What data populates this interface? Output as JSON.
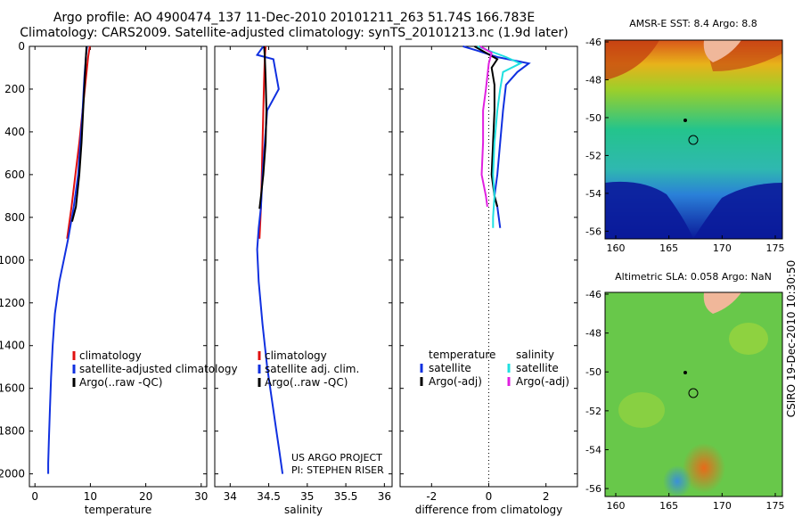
{
  "figure": {
    "title_line1": "Argo profile: AO 4900474_137 11-Dec-2010 20101211_263 51.74S 166.783E",
    "title_line2": "Climatology: CARS2009. Satellite-adjusted climatology: synTS_20101213.nc (1.9d later)",
    "side_label": "CSIRO 19-Dec-2010 10:30:50",
    "project_line1": "US ARGO PROJECT",
    "project_line2": "PI: STEPHEN RISER"
  },
  "colors": {
    "climatology": "#e01010",
    "satellite": "#1030e0",
    "argo": "#000000",
    "satellite_salinity": "#20e0e0",
    "argo_salinity": "#e020e0"
  },
  "chart_data": [
    {
      "type": "line",
      "xlabel": "temperature",
      "xlim": [
        -1,
        31
      ],
      "xticks": [
        0,
        10,
        20,
        30
      ],
      "ylim": [
        2060,
        0
      ],
      "yticks": [
        0,
        200,
        400,
        600,
        800,
        1000,
        1200,
        1400,
        1600,
        1800,
        2000
      ],
      "legend": [
        "climatology",
        "satellite-adjusted climatology",
        "Argo(..raw -QC)"
      ],
      "series": [
        {
          "name": "climatology",
          "color_key": "climatology",
          "x": [
            9.9,
            9.6,
            9.2,
            8.6,
            8.0,
            7.3,
            6.6,
            5.8
          ],
          "y": [
            0,
            50,
            150,
            300,
            450,
            600,
            750,
            900
          ]
        },
        {
          "name": "satellite-adjusted climatology",
          "color_key": "satellite",
          "x": [
            9.4,
            9.2,
            8.9,
            8.6,
            8.2,
            7.8,
            7.0,
            6.0,
            5.2,
            4.4,
            3.6,
            3.2,
            2.9,
            2.7,
            2.5,
            2.4,
            2.4
          ],
          "y": [
            0,
            50,
            150,
            300,
            450,
            600,
            750,
            900,
            1000,
            1100,
            1250,
            1400,
            1550,
            1700,
            1850,
            1950,
            2000
          ]
        },
        {
          "name": "Argo(..raw -QC)",
          "color_key": "argo",
          "x": [
            9.3,
            9.2,
            9.0,
            8.7,
            8.4,
            8.0,
            7.4,
            6.7
          ],
          "y": [
            0,
            50,
            150,
            300,
            450,
            600,
            750,
            820
          ]
        }
      ]
    },
    {
      "type": "line",
      "xlabel": "salinity",
      "xlim": [
        33.8,
        36.1
      ],
      "xticks": [
        34,
        34.5,
        35,
        35.5,
        36
      ],
      "xtick_labels": [
        "34",
        "34.5",
        "35",
        "35.5",
        "36"
      ],
      "ylim": [
        2060,
        0
      ],
      "legend": [
        "climatology",
        "satellite adj. clim.",
        "Argo(..raw -QC)"
      ],
      "series": [
        {
          "name": "climatology",
          "color_key": "climatology",
          "x": [
            34.46,
            34.45,
            34.44,
            34.43,
            34.42,
            34.41,
            34.4,
            34.38
          ],
          "y": [
            0,
            50,
            150,
            300,
            450,
            600,
            750,
            900
          ]
        },
        {
          "name": "satellite adj. clim.",
          "color_key": "satellite",
          "x": [
            34.43,
            34.35,
            34.56,
            34.58,
            34.63,
            34.48,
            34.45,
            34.42,
            34.4,
            34.37,
            34.35,
            34.37,
            34.42,
            34.48,
            34.54,
            34.6,
            34.64,
            34.66,
            34.68
          ],
          "y": [
            0,
            40,
            60,
            100,
            200,
            300,
            450,
            600,
            750,
            850,
            950,
            1100,
            1300,
            1500,
            1650,
            1800,
            1900,
            1950,
            2000
          ]
        },
        {
          "name": "Argo(..raw -QC)",
          "color_key": "argo",
          "x": [
            34.44,
            34.45,
            34.46,
            34.47,
            34.46,
            34.43,
            34.4,
            34.38
          ],
          "y": [
            0,
            50,
            150,
            300,
            450,
            600,
            700,
            760
          ]
        }
      ]
    },
    {
      "type": "line",
      "xlabel": "difference from climatology",
      "xlim": [
        -3.1,
        3.1
      ],
      "xticks": [
        -2,
        0,
        2
      ],
      "ylim": [
        2060,
        0
      ],
      "legend_titles": [
        "temperature",
        "salinity"
      ],
      "legend": [
        "satellite",
        "Argo(-adj)",
        "satellite",
        "Argo(-adj)"
      ],
      "series": [
        {
          "name": "satellite",
          "group": "temperature",
          "color_key": "satellite",
          "x": [
            -0.9,
            -0.4,
            0.3,
            1.4,
            1.0,
            0.6,
            0.5,
            0.4,
            0.3,
            0.2,
            0.3,
            0.35,
            0.4
          ],
          "y": [
            0,
            20,
            50,
            80,
            120,
            180,
            300,
            450,
            600,
            700,
            750,
            800,
            850
          ]
        },
        {
          "name": "Argo(-adj)",
          "group": "temperature",
          "color_key": "argo",
          "x": [
            -0.5,
            -0.1,
            0.3,
            0.1,
            0.2,
            0.2,
            0.15,
            0.1,
            0.2,
            0.3
          ],
          "y": [
            0,
            30,
            60,
            100,
            180,
            300,
            450,
            600,
            700,
            750
          ]
        },
        {
          "name": "satellite",
          "group": "salinity",
          "color_key": "satellite_salinity",
          "x": [
            -0.4,
            0.6,
            1.1,
            0.5,
            0.4,
            0.3,
            0.2,
            0.15,
            0.2,
            0.15,
            0.15
          ],
          "y": [
            0,
            50,
            80,
            120,
            200,
            300,
            450,
            600,
            700,
            800,
            850
          ]
        },
        {
          "name": "Argo(-adj)",
          "group": "salinity",
          "color_key": "argo_salinity",
          "x": [
            -0.3,
            0.1,
            0.0,
            -0.1,
            -0.2,
            -0.2,
            -0.25,
            -0.1,
            -0.05
          ],
          "y": [
            0,
            30,
            80,
            200,
            300,
            450,
            600,
            700,
            750
          ]
        }
      ]
    }
  ],
  "maps": [
    {
      "title": "AMSR-E SST: 8.4 Argo: 8.8",
      "ytick_labels": [
        "-46",
        "-48",
        "-50",
        "-52",
        "-54",
        "-56"
      ],
      "xtick_labels": [
        "160",
        "165",
        "170",
        "175"
      ]
    },
    {
      "title": "Altimetric SLA: 0.058 Argo: NaN",
      "ytick_labels": [
        "-46",
        "-48",
        "-50",
        "-52",
        "-54",
        "-56"
      ],
      "xtick_labels": [
        "160",
        "165",
        "170",
        "175"
      ]
    }
  ]
}
